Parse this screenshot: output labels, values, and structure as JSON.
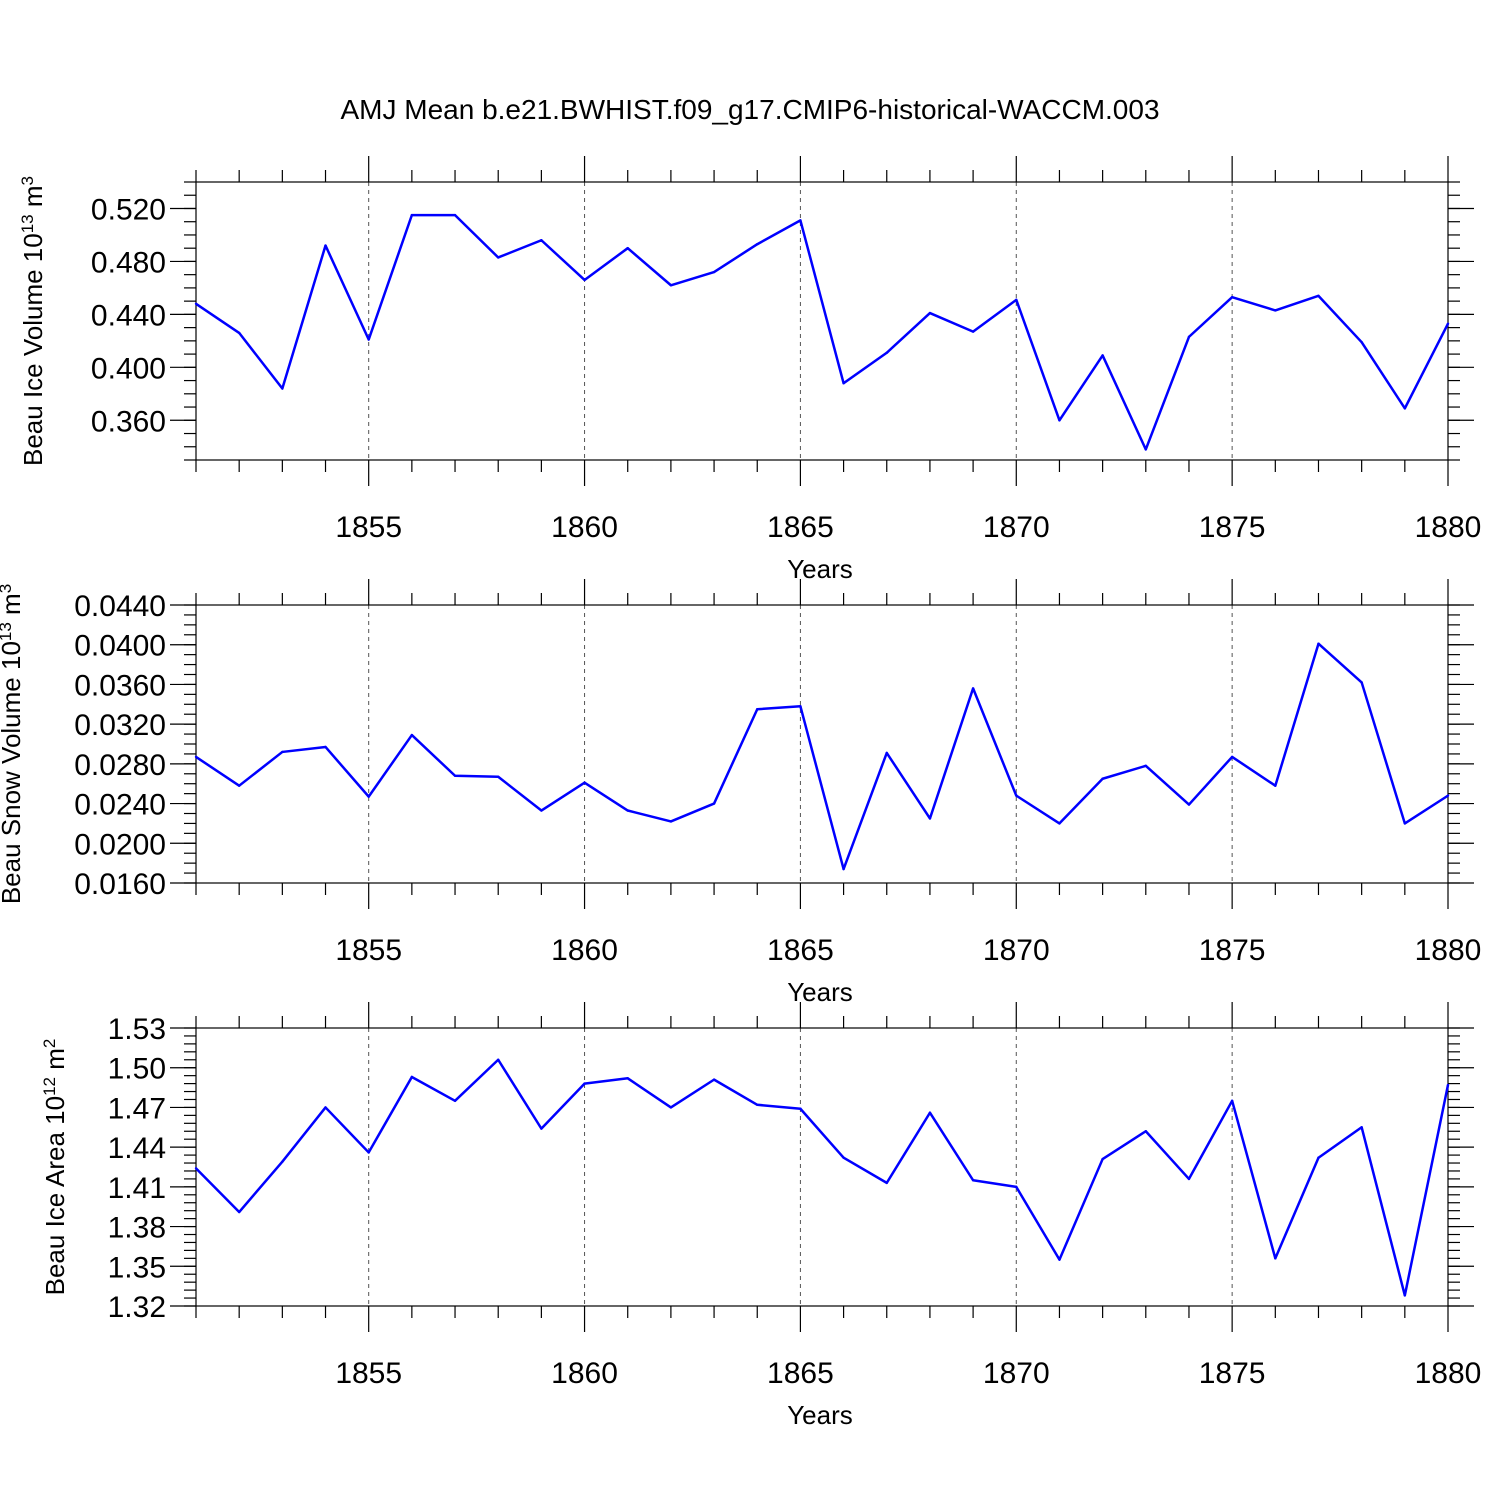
{
  "title": "AMJ Mean b.e21.BWHIST.f09_g17.CMIP6-historical-WACCM.003",
  "colors": {
    "series": "#0000ff",
    "axis": "#000000",
    "grid": "#555555"
  },
  "chart_data": [
    {
      "type": "line",
      "ylabel": {
        "prefix": "Beau Ice Volume 10",
        "exponent": "13",
        "unit": " m",
        "unit_exponent": "3"
      },
      "xlabel": "Years",
      "xlim": [
        1851,
        1880
      ],
      "ylim": [
        0.33,
        0.54
      ],
      "xticks": [
        1855,
        1860,
        1865,
        1870,
        1875,
        1880
      ],
      "xtick_labels": [
        "1855",
        "1860",
        "1865",
        "1870",
        "1875",
        "1880"
      ],
      "yticks": [
        0.36,
        0.4,
        0.44,
        0.48,
        0.52
      ],
      "ytick_labels": [
        "0.360",
        "0.400",
        "0.440",
        "0.480",
        "0.520"
      ],
      "y_minor_step": 0.01,
      "x": [
        1851,
        1852,
        1853,
        1854,
        1855,
        1856,
        1857,
        1858,
        1859,
        1860,
        1861,
        1862,
        1863,
        1864,
        1865,
        1866,
        1867,
        1868,
        1869,
        1870,
        1871,
        1872,
        1873,
        1874,
        1875,
        1876,
        1877,
        1878,
        1879,
        1880
      ],
      "values": [
        0.448,
        0.426,
        0.384,
        0.492,
        0.421,
        0.515,
        0.515,
        0.483,
        0.496,
        0.466,
        0.49,
        0.462,
        0.472,
        0.493,
        0.511,
        0.388,
        0.411,
        0.441,
        0.427,
        0.451,
        0.36,
        0.409,
        0.338,
        0.423,
        0.453,
        0.443,
        0.454,
        0.419,
        0.369,
        0.433
      ]
    },
    {
      "type": "line",
      "ylabel": {
        "prefix": "Beau Snow Volume 10",
        "exponent": "13",
        "unit": " m",
        "unit_exponent": "3"
      },
      "xlabel": "Years",
      "xlim": [
        1851,
        1880
      ],
      "ylim": [
        0.016,
        0.044
      ],
      "xticks": [
        1855,
        1860,
        1865,
        1870,
        1875,
        1880
      ],
      "xtick_labels": [
        "1855",
        "1860",
        "1865",
        "1870",
        "1875",
        "1880"
      ],
      "yticks": [
        0.016,
        0.02,
        0.024,
        0.028,
        0.032,
        0.036,
        0.04,
        0.044
      ],
      "ytick_labels": [
        "0.0160",
        "0.0200",
        "0.0240",
        "0.0280",
        "0.0320",
        "0.0360",
        "0.0400",
        "0.0440"
      ],
      "y_minor_step": 0.001,
      "x": [
        1851,
        1852,
        1853,
        1854,
        1855,
        1856,
        1857,
        1858,
        1859,
        1860,
        1861,
        1862,
        1863,
        1864,
        1865,
        1866,
        1867,
        1868,
        1869,
        1870,
        1871,
        1872,
        1873,
        1874,
        1875,
        1876,
        1877,
        1878,
        1879,
        1880
      ],
      "values": [
        0.0287,
        0.0258,
        0.0292,
        0.0297,
        0.0247,
        0.0309,
        0.0268,
        0.0267,
        0.0233,
        0.0261,
        0.0233,
        0.0222,
        0.024,
        0.0335,
        0.0338,
        0.0174,
        0.0291,
        0.0225,
        0.0356,
        0.0248,
        0.022,
        0.0265,
        0.0278,
        0.0239,
        0.0287,
        0.0258,
        0.0401,
        0.0362,
        0.022,
        0.0248
      ]
    },
    {
      "type": "line",
      "ylabel": {
        "prefix": "Beau Ice Area 10",
        "exponent": "12",
        "unit": " m",
        "unit_exponent": "2"
      },
      "xlabel": "Years",
      "xlim": [
        1851,
        1880
      ],
      "ylim": [
        1.32,
        1.53
      ],
      "xticks": [
        1855,
        1860,
        1865,
        1870,
        1875,
        1880
      ],
      "xtick_labels": [
        "1855",
        "1860",
        "1865",
        "1870",
        "1875",
        "1880"
      ],
      "yticks": [
        1.32,
        1.35,
        1.38,
        1.41,
        1.44,
        1.47,
        1.5,
        1.53
      ],
      "ytick_labels": [
        "1.32",
        "1.35",
        "1.38",
        "1.41",
        "1.44",
        "1.47",
        "1.50",
        "1.53"
      ],
      "y_minor_step": 0.006,
      "x": [
        1851,
        1852,
        1853,
        1854,
        1855,
        1856,
        1857,
        1858,
        1859,
        1860,
        1861,
        1862,
        1863,
        1864,
        1865,
        1866,
        1867,
        1868,
        1869,
        1870,
        1871,
        1872,
        1873,
        1874,
        1875,
        1876,
        1877,
        1878,
        1879,
        1880
      ],
      "values": [
        1.424,
        1.391,
        1.429,
        1.47,
        1.436,
        1.493,
        1.475,
        1.506,
        1.454,
        1.488,
        1.492,
        1.47,
        1.491,
        1.472,
        1.469,
        1.432,
        1.413,
        1.466,
        1.415,
        1.41,
        1.355,
        1.431,
        1.452,
        1.416,
        1.475,
        1.356,
        1.432,
        1.455,
        1.328,
        1.487
      ]
    }
  ]
}
